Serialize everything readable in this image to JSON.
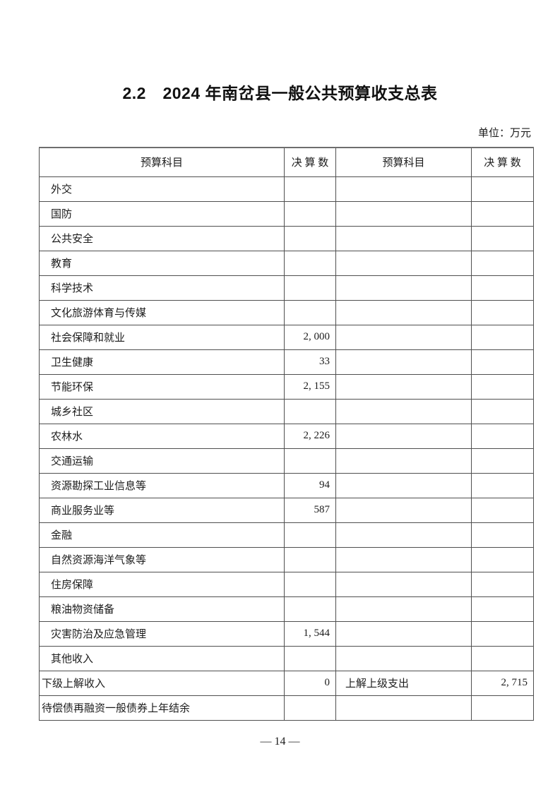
{
  "page": {
    "title": "2.2　2024 年南岔县一般公共预算收支总表",
    "unit_label": "单位：万元",
    "page_number": "— 14 —"
  },
  "table": {
    "headers": [
      "预算科目",
      "决 算 数",
      "预算科目",
      "决 算 数"
    ],
    "rows": [
      {
        "c1": "外交",
        "c2": "",
        "c3": "",
        "c4": "",
        "flush": false
      },
      {
        "c1": "国防",
        "c2": "",
        "c3": "",
        "c4": "",
        "flush": false
      },
      {
        "c1": "公共安全",
        "c2": "",
        "c3": "",
        "c4": "",
        "flush": false
      },
      {
        "c1": "教育",
        "c2": "",
        "c3": "",
        "c4": "",
        "flush": false
      },
      {
        "c1": "科学技术",
        "c2": "",
        "c3": "",
        "c4": "",
        "flush": false
      },
      {
        "c1": "文化旅游体育与传媒",
        "c2": "",
        "c3": "",
        "c4": "",
        "flush": false
      },
      {
        "c1": "社会保障和就业",
        "c2": "2, 000",
        "c3": "",
        "c4": "",
        "flush": false
      },
      {
        "c1": "卫生健康",
        "c2": "33",
        "c3": "",
        "c4": "",
        "flush": false
      },
      {
        "c1": "节能环保",
        "c2": "2, 155",
        "c3": "",
        "c4": "",
        "flush": false
      },
      {
        "c1": "城乡社区",
        "c2": "",
        "c3": "",
        "c4": "",
        "flush": false
      },
      {
        "c1": "农林水",
        "c2": "2, 226",
        "c3": "",
        "c4": "",
        "flush": false
      },
      {
        "c1": "交通运输",
        "c2": "",
        "c3": "",
        "c4": "",
        "flush": false
      },
      {
        "c1": "资源勘探工业信息等",
        "c2": "94",
        "c3": "",
        "c4": "",
        "flush": false
      },
      {
        "c1": "商业服务业等",
        "c2": "587",
        "c3": "",
        "c4": "",
        "flush": false
      },
      {
        "c1": "金融",
        "c2": "",
        "c3": "",
        "c4": "",
        "flush": false
      },
      {
        "c1": "自然资源海洋气象等",
        "c2": "",
        "c3": "",
        "c4": "",
        "flush": false
      },
      {
        "c1": "住房保障",
        "c2": "",
        "c3": "",
        "c4": "",
        "flush": false
      },
      {
        "c1": "粮油物资储备",
        "c2": "",
        "c3": "",
        "c4": "",
        "flush": false
      },
      {
        "c1": "灾害防治及应急管理",
        "c2": "1, 544",
        "c3": "",
        "c4": "",
        "flush": false
      },
      {
        "c1": "其他收入",
        "c2": "",
        "c3": "",
        "c4": "",
        "flush": false
      },
      {
        "c1": "下级上解收入",
        "c2": "0",
        "c3": "上解上级支出",
        "c4": "2, 715",
        "flush": true
      },
      {
        "c1": "待偿债再融资一般债券上年结余",
        "c2": "",
        "c3": "",
        "c4": "",
        "flush": true
      }
    ]
  }
}
